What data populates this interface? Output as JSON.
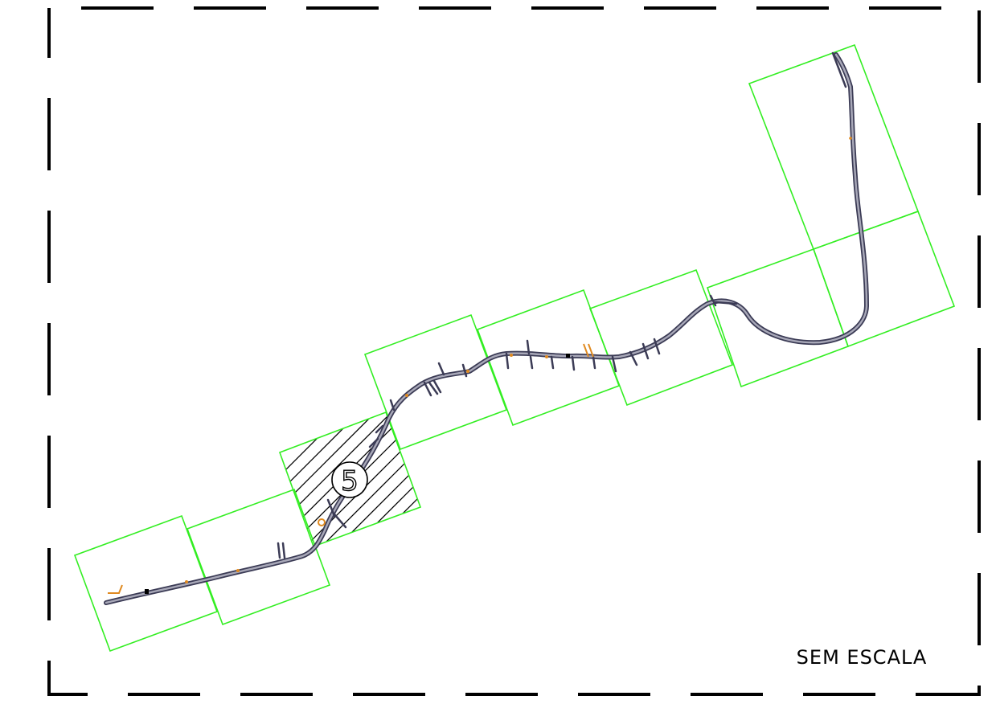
{
  "map": {
    "scale_note": "SEM ESCALA",
    "highlighted_sheet_label": "5",
    "sheet_count": 10,
    "highlighted_sheet_index": 5
  },
  "colors": {
    "border": "#000000",
    "sheet_outline": "#33ee22",
    "road_casing": "#3b3b55",
    "road_fill": "#a8a8b8",
    "feature_accent": "#e08a20",
    "hatch": "#000000"
  }
}
